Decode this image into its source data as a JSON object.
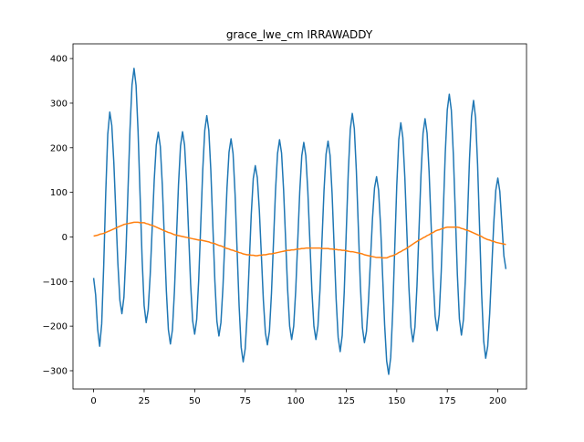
{
  "chart_data": {
    "type": "line",
    "title": "grace_lwe_cm IRRAWADDY",
    "x": [
      0,
      1,
      2,
      3,
      4,
      5,
      6,
      7,
      8,
      9,
      10,
      11,
      12,
      13,
      14,
      15,
      16,
      17,
      18,
      19,
      20,
      21,
      22,
      23,
      24,
      25,
      26,
      27,
      28,
      29,
      30,
      31,
      32,
      33,
      34,
      35,
      36,
      37,
      38,
      39,
      40,
      41,
      42,
      43,
      44,
      45,
      46,
      47,
      48,
      49,
      50,
      51,
      52,
      53,
      54,
      55,
      56,
      57,
      58,
      59,
      60,
      61,
      62,
      63,
      64,
      65,
      66,
      67,
      68,
      69,
      70,
      71,
      72,
      73,
      74,
      75,
      76,
      77,
      78,
      79,
      80,
      81,
      82,
      83,
      84,
      85,
      86,
      87,
      88,
      89,
      90,
      91,
      92,
      93,
      94,
      95,
      96,
      97,
      98,
      99,
      100,
      101,
      102,
      103,
      104,
      105,
      106,
      107,
      108,
      109,
      110,
      111,
      112,
      113,
      114,
      115,
      116,
      117,
      118,
      119,
      120,
      121,
      122,
      123,
      124,
      125,
      126,
      127,
      128,
      129,
      130,
      131,
      132,
      133,
      134,
      135,
      136,
      137,
      138,
      139,
      140,
      141,
      142,
      143,
      144,
      145,
      146,
      147,
      148,
      149,
      150,
      151,
      152,
      153,
      154,
      155,
      156,
      157,
      158,
      159,
      160,
      161,
      162,
      163,
      164,
      165,
      166,
      167,
      168,
      169,
      170,
      171,
      172,
      173,
      174,
      175,
      176,
      177,
      178,
      179,
      180,
      181,
      182,
      183,
      184,
      185,
      186,
      187,
      188,
      189,
      190,
      191,
      192,
      193,
      194,
      195,
      196,
      197,
      198,
      199,
      200,
      201,
      202,
      203,
      204
    ],
    "series": [
      {
        "color": "#1f77b4",
        "values": [
          -92,
          -130,
          -207,
          -245,
          -195,
          -64,
          99,
          230,
          280,
          250,
          167,
          54,
          -59,
          -142,
          -172,
          -135,
          -34,
          103,
          241,
          341,
          378,
          340,
          236,
          93,
          -50,
          -154,
          -192,
          -163,
          -85,
          22,
          128,
          206,
          235,
          203,
          116,
          -3,
          -121,
          -208,
          -240,
          -208,
          -121,
          -2,
          117,
          204,
          236,
          206,
          123,
          9,
          -105,
          -188,
          -218,
          -185,
          -96,
          27,
          150,
          239,
          272,
          239,
          149,
          25,
          -99,
          -189,
          -222,
          -192,
          -112,
          -1,
          110,
          190,
          220,
          187,
          95,
          -30,
          -155,
          -247,
          -280,
          -251,
          -170,
          -60,
          50,
          131,
          160,
          133,
          60,
          -41,
          -142,
          -215,
          -242,
          -211,
          -127,
          -12,
          103,
          187,
          218,
          188,
          106,
          -6,
          -118,
          -200,
          -230,
          -200,
          -120,
          -9,
          102,
          182,
          212,
          182,
          102,
          -9,
          -120,
          -200,
          -230,
          -200,
          -119,
          -8,
          104,
          185,
          215,
          183,
          97,
          -21,
          -139,
          -225,
          -257,
          -221,
          -124,
          10,
          144,
          241,
          277,
          243,
          149,
          20,
          -109,
          -203,
          -237,
          -212,
          -144,
          -51,
          42,
          110,
          135,
          105,
          24,
          -87,
          -197,
          -278,
          -308,
          -270,
          -167,
          -26,
          115,
          218,
          256,
          223,
          133,
          11,
          -112,
          -202,
          -235,
          -202,
          -110,
          15,
          140,
          232,
          265,
          233,
          146,
          28,
          -91,
          -178,
          -210,
          -174,
          -78,
          55,
          188,
          285,
          320,
          284,
          185,
          50,
          -85,
          -184,
          -220,
          -185,
          -89,
          43,
          175,
          271,
          306,
          267,
          162,
          17,
          -128,
          -233,
          -272,
          -245,
          -171,
          -70,
          31,
          105,
          132,
          102,
          30,
          -42,
          -72
        ]
      },
      {
        "color": "#ff7f0e",
        "values": [
          2,
          3,
          4,
          6,
          7,
          8,
          10,
          12,
          14,
          16,
          18,
          20,
          22,
          24,
          26,
          28,
          29,
          30,
          31,
          32,
          33,
          33,
          33,
          32,
          32,
          32,
          30,
          29,
          27,
          26,
          24,
          22,
          20,
          18,
          16,
          14,
          12,
          10,
          9,
          7,
          5,
          4,
          3,
          2,
          1,
          0,
          -1,
          -2,
          -3,
          -4,
          -5,
          -6,
          -7,
          -7,
          -8,
          -9,
          -10,
          -11,
          -13,
          -14,
          -15,
          -17,
          -19,
          -20,
          -22,
          -24,
          -26,
          -27,
          -29,
          -30,
          -32,
          -33,
          -35,
          -36,
          -38,
          -39,
          -40,
          -40,
          -41,
          -41,
          -42,
          -42,
          -41,
          -41,
          -40,
          -40,
          -39,
          -38,
          -38,
          -37,
          -36,
          -35,
          -34,
          -33,
          -32,
          -31,
          -30,
          -30,
          -29,
          -29,
          -28,
          -27,
          -27,
          -26,
          -26,
          -25,
          -25,
          -25,
          -25,
          -25,
          -25,
          -25,
          -25,
          -26,
          -26,
          -26,
          -26,
          -27,
          -27,
          -28,
          -28,
          -29,
          -29,
          -30,
          -30,
          -31,
          -32,
          -33,
          -33,
          -34,
          -35,
          -36,
          -37,
          -38,
          -40,
          -41,
          -42,
          -43,
          -44,
          -45,
          -46,
          -46,
          -46,
          -47,
          -47,
          -47,
          -45,
          -43,
          -42,
          -40,
          -38,
          -35,
          -33,
          -30,
          -28,
          -25,
          -22,
          -19,
          -16,
          -13,
          -10,
          -7,
          -5,
          -2,
          0,
          3,
          5,
          8,
          10,
          13,
          15,
          16,
          18,
          19,
          21,
          22,
          22,
          22,
          22,
          22,
          22,
          21,
          19,
          18,
          16,
          15,
          13,
          11,
          9,
          7,
          5,
          3,
          1,
          -2,
          -4,
          -6,
          -7,
          -9,
          -10,
          -12,
          -13,
          -14,
          -15,
          -16,
          -17
        ]
      }
    ],
    "xlim": [
      -10.2,
      214.2
    ],
    "xticks": [
      0,
      25,
      50,
      75,
      100,
      125,
      150,
      175,
      200
    ],
    "ylim": [
      -341,
      433
    ],
    "yticks": [
      {
        "value": -300,
        "label": "−300"
      },
      {
        "value": -200,
        "label": "−200"
      },
      {
        "value": -100,
        "label": "−100"
      },
      0,
      100,
      200,
      300,
      400
    ]
  }
}
